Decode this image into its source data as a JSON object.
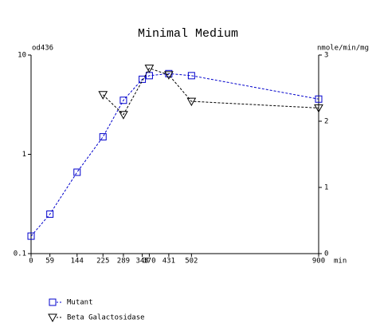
{
  "chart_data": {
    "type": "line",
    "title": "Minimal Medium",
    "ylabel": "od436",
    "y2label": "nmole/min/mg",
    "xlabel": "min",
    "xlim": [
      0,
      900
    ],
    "xticks": [
      0,
      59,
      144,
      225,
      289,
      348,
      370,
      431,
      502,
      900
    ],
    "ylim": [
      0.1,
      10
    ],
    "yticks": [
      0.1,
      1,
      10
    ],
    "ylog": true,
    "y2lim": [
      0,
      3
    ],
    "y2ticks": [
      0,
      1,
      2,
      3
    ],
    "series": [
      {
        "name": "Mutant",
        "color": "#0000cc",
        "marker": "square",
        "x": [
          0,
          59,
          144,
          225,
          289,
          348,
          370,
          431,
          502,
          900
        ],
        "values": [
          0.15,
          0.25,
          0.66,
          1.5,
          3.5,
          5.7,
          6.2,
          6.5,
          6.2,
          3.6
        ]
      },
      {
        "name": "Beta Galactosidase",
        "color": "#000000",
        "marker": "triangle-down",
        "axis": "y2",
        "x": [
          225,
          289,
          370,
          431,
          502,
          900
        ],
        "values": [
          2.4,
          2.1,
          2.8,
          2.7,
          2.3,
          2.2
        ]
      }
    ]
  }
}
